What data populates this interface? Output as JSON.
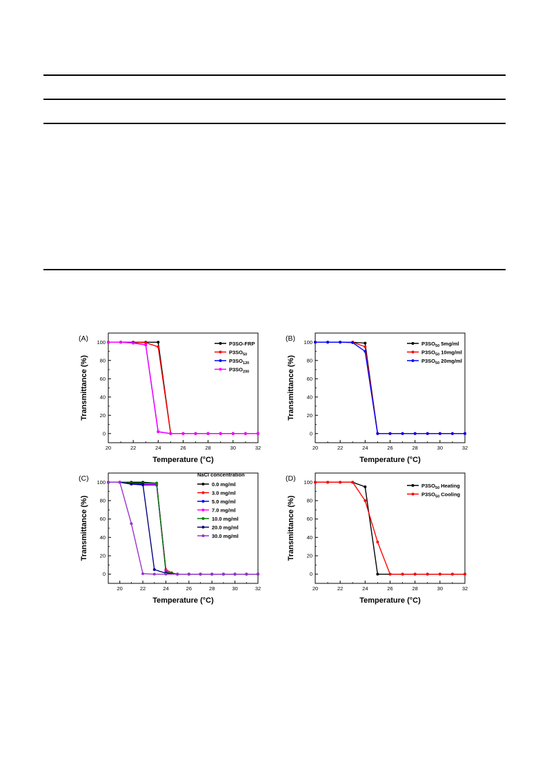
{
  "chart_data": [
    {
      "panel_label": "(A)",
      "type": "line",
      "xlabel": "Temperature (°C)",
      "ylabel": "Transmittance (%)",
      "xlim": [
        20,
        32
      ],
      "ylim": [
        -10,
        110
      ],
      "xticks": [
        20,
        22,
        24,
        26,
        28,
        30,
        32
      ],
      "yticks": [
        0,
        20,
        40,
        60,
        80,
        100
      ],
      "legend_position": "top-right",
      "series": [
        {
          "name": "P3SO-FRP",
          "color": "#000000",
          "x": [
            20,
            21,
            22,
            23,
            24,
            25,
            26,
            27,
            28,
            29,
            30,
            31,
            32
          ],
          "y": [
            100,
            100,
            100,
            100,
            100,
            0,
            0,
            0,
            0,
            0,
            0,
            0,
            0
          ]
        },
        {
          "name": "P3SO",
          "sub": "50",
          "color": "#ff0000",
          "x": [
            20,
            21,
            22,
            23,
            24,
            25,
            26,
            27,
            28,
            29,
            30,
            31,
            32
          ],
          "y": [
            100,
            100,
            100,
            99.5,
            95,
            0,
            0,
            0,
            0,
            0,
            0,
            0,
            0
          ]
        },
        {
          "name": "P3SO",
          "sub": "120",
          "color": "#0000ff",
          "x": [
            20,
            21,
            22,
            23,
            24,
            25,
            26,
            27,
            28,
            29,
            30,
            31,
            32
          ],
          "y": [
            100,
            100,
            99.5,
            97,
            2,
            0,
            0,
            0,
            0,
            0,
            0,
            0,
            0
          ]
        },
        {
          "name": "P3SO",
          "sub": "200",
          "color": "#ff00ff",
          "x": [
            20,
            21,
            22,
            23,
            24,
            25,
            26,
            27,
            28,
            29,
            30,
            31,
            32
          ],
          "y": [
            100,
            100,
            99,
            97,
            2,
            0,
            0,
            0,
            0,
            0,
            0,
            0,
            0
          ]
        }
      ]
    },
    {
      "panel_label": "(B)",
      "type": "line",
      "xlabel": "Temperature (°C)",
      "ylabel": "Transmittance (%)",
      "xlim": [
        20,
        32
      ],
      "ylim": [
        -10,
        110
      ],
      "xticks": [
        20,
        22,
        24,
        26,
        28,
        30,
        32
      ],
      "yticks": [
        0,
        20,
        40,
        60,
        80,
        100
      ],
      "legend_position": "top-right",
      "series": [
        {
          "name": "P3SO",
          "sub": "50",
          "suffix": " 5mg/ml",
          "color": "#000000",
          "x": [
            20,
            21,
            22,
            23,
            24,
            25,
            26,
            27,
            28,
            29,
            30,
            31,
            32
          ],
          "y": [
            100,
            100,
            100,
            100,
            99,
            0,
            0,
            0,
            0,
            0,
            0,
            0,
            0
          ]
        },
        {
          "name": "P3SO",
          "sub": "50",
          "suffix": " 10mg/ml",
          "color": "#ff0000",
          "x": [
            20,
            21,
            22,
            23,
            24,
            25,
            26,
            27,
            28,
            29,
            30,
            31,
            32
          ],
          "y": [
            100,
            100,
            100,
            100,
            95,
            0,
            0,
            0,
            0,
            0,
            0,
            0,
            0
          ]
        },
        {
          "name": "P3SO",
          "sub": "50",
          "suffix": " 20mg/ml",
          "color": "#0000ff",
          "x": [
            20,
            21,
            22,
            23,
            24,
            25,
            26,
            27,
            28,
            29,
            30,
            31,
            32
          ],
          "y": [
            100,
            100,
            100,
            99.5,
            90,
            0,
            0,
            0,
            0,
            0,
            0,
            0,
            0
          ]
        }
      ]
    },
    {
      "panel_label": "(C)",
      "type": "line",
      "xlabel": "Temperature (°C)",
      "ylabel": "Transmittance (%)",
      "xlim": [
        19,
        32
      ],
      "ylim": [
        -10,
        110
      ],
      "xticks": [
        20,
        22,
        24,
        26,
        28,
        30,
        32
      ],
      "yticks": [
        0,
        20,
        40,
        60,
        80,
        100
      ],
      "legend_title": "NaCl concentration",
      "legend_position": "top-right",
      "series": [
        {
          "name": "0.0 mg/ml",
          "color": "#000000",
          "x": [
            19,
            20,
            21,
            22,
            23.2,
            24,
            24.5,
            25,
            26,
            27,
            28,
            29,
            30,
            31,
            32
          ],
          "y": [
            100,
            100,
            100,
            100,
            99,
            4,
            1,
            0,
            0,
            0,
            0,
            0,
            0,
            0,
            0
          ]
        },
        {
          "name": "3.0 mg/ml",
          "color": "#ff0000",
          "x": [
            19,
            20,
            21,
            22,
            23.2,
            24,
            24.5,
            25,
            26,
            27,
            28,
            29,
            30,
            31,
            32
          ],
          "y": [
            100,
            100,
            99,
            98,
            98,
            5,
            1.5,
            0,
            0,
            0,
            0,
            0,
            0,
            0,
            0
          ]
        },
        {
          "name": "5.0 mg/ml",
          "color": "#0000ff",
          "x": [
            19,
            20,
            21,
            22,
            23.2,
            24,
            24.5,
            25,
            26,
            27,
            28,
            29,
            30,
            31,
            32
          ],
          "y": [
            100,
            100,
            98,
            97,
            97,
            3,
            1,
            0,
            0,
            0,
            0,
            0,
            0,
            0,
            0
          ]
        },
        {
          "name": "7.0 mg/ml",
          "color": "#ff00ff",
          "x": [
            19,
            20,
            21,
            22,
            23.2,
            24,
            24.5,
            25,
            26,
            27,
            28,
            29,
            30,
            31,
            32
          ],
          "y": [
            100,
            100,
            99,
            98,
            98,
            4,
            1,
            0,
            0,
            0,
            0,
            0,
            0,
            0,
            0
          ]
        },
        {
          "name": "10.0 mg/ml",
          "color": "#008000",
          "x": [
            19,
            20,
            21,
            22,
            23.2,
            24,
            24.5,
            25,
            26,
            27,
            28,
            29,
            30,
            31,
            32
          ],
          "y": [
            100,
            100,
            99,
            99,
            99,
            2,
            1,
            0,
            0,
            0,
            0,
            0,
            0,
            0,
            0
          ]
        },
        {
          "name": "20.0 mg/ml",
          "color": "#000080",
          "x": [
            19,
            20,
            21,
            22,
            23,
            24,
            25,
            26,
            27,
            28,
            29,
            30,
            31,
            32
          ],
          "y": [
            100,
            100,
            98,
            98,
            5,
            1,
            0,
            0,
            0,
            0,
            0,
            0,
            0,
            0
          ]
        },
        {
          "name": "30.0 mg/ml",
          "color": "#9932cc",
          "x": [
            19,
            20,
            21,
            22,
            23,
            24,
            25,
            26,
            27,
            28,
            29,
            30,
            31,
            32
          ],
          "y": [
            100,
            100,
            55,
            0.5,
            0,
            0,
            0,
            0,
            0,
            0,
            0,
            0,
            0,
            0
          ]
        }
      ]
    },
    {
      "panel_label": "(D)",
      "type": "line",
      "xlabel": "Temperature (°C)",
      "ylabel": "Transmittance (%)",
      "xlim": [
        20,
        32
      ],
      "ylim": [
        -10,
        110
      ],
      "xticks": [
        20,
        22,
        24,
        26,
        28,
        30,
        32
      ],
      "yticks": [
        0,
        20,
        40,
        60,
        80,
        100
      ],
      "legend_position": "top-right",
      "series": [
        {
          "name": "P3SO",
          "sub": "50",
          "suffix": " Heating",
          "color": "#000000",
          "x": [
            20,
            21,
            22,
            23,
            24,
            25,
            26,
            27,
            28,
            29,
            30,
            31,
            32
          ],
          "y": [
            100,
            100,
            100,
            100,
            95,
            0,
            0,
            0,
            0,
            0,
            0,
            0,
            0
          ]
        },
        {
          "name": "P3SO",
          "sub": "50",
          "suffix": " Cooling",
          "color": "#ff0000",
          "x": [
            20,
            21,
            22,
            23,
            24,
            25,
            26,
            27,
            28,
            29,
            30,
            31,
            32
          ],
          "y": [
            100,
            100,
            100,
            100,
            80,
            35,
            0,
            0,
            0,
            0,
            0,
            0,
            0
          ]
        }
      ]
    }
  ]
}
